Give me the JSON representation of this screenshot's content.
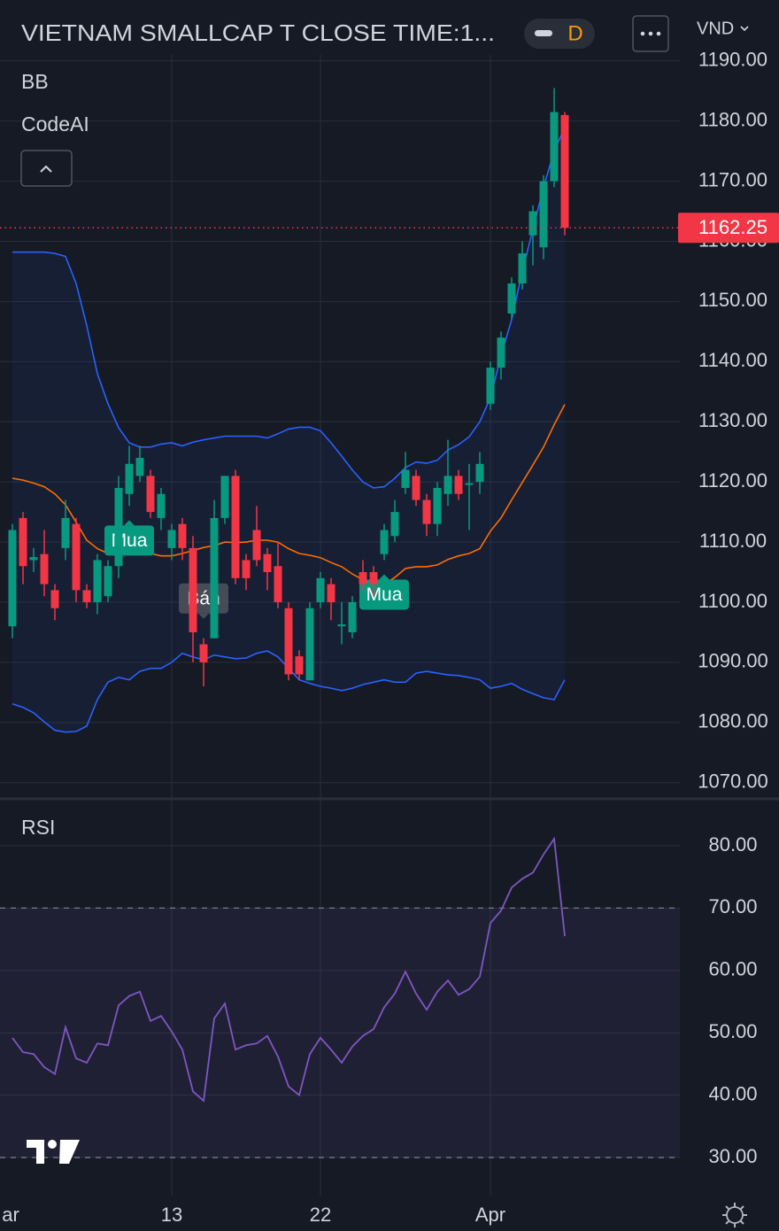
{
  "header": {
    "title": "VIETNAM SMALLCAP T CLOSE TIME:1...",
    "interval": "D",
    "currency": "VND"
  },
  "chart_data": [
    {
      "type": "candlestick",
      "indicators": [
        "BB",
        "CodeAI"
      ],
      "categories": [
        "ar",
        null,
        null,
        null,
        null,
        null,
        null,
        null,
        null,
        null,
        null,
        null,
        null,
        null,
        null,
        "13",
        null,
        null,
        null,
        null,
        null,
        null,
        null,
        null,
        null,
        null,
        null,
        null,
        null,
        "22",
        null,
        null,
        null,
        null,
        null,
        null,
        null,
        null,
        null,
        null,
        null,
        null,
        null,
        null,
        null,
        "Apr",
        null,
        null,
        null,
        null,
        null,
        null,
        null
      ],
      "open": [
        1096,
        1114,
        1107,
        1108,
        1102,
        1109,
        1113,
        1102,
        1100,
        1101,
        1106,
        1118,
        1121,
        1121,
        1114,
        1109,
        1113,
        1109,
        1093,
        1094,
        1114,
        1121,
        1107,
        1112,
        1108,
        1106,
        1099,
        1091,
        1087,
        1100,
        1103,
        1096,
        1095,
        1105,
        1105,
        1108,
        1111,
        1119,
        1121,
        1117,
        1113,
        1118,
        1121,
        1119.5,
        1120,
        1133,
        1139,
        1148,
        1153,
        1161,
        1159,
        1170,
        1181
      ],
      "high": [
        1113,
        1115,
        1109,
        1112,
        1103,
        1117,
        1114,
        1103,
        1108,
        1107,
        1121,
        1126,
        1126,
        1122,
        1119,
        1113,
        1114,
        1111,
        1094,
        1117,
        1121,
        1122,
        1108,
        1116,
        1109,
        1110,
        1100,
        1092,
        1100,
        1105,
        1104,
        1100,
        1101,
        1107,
        1106,
        1113,
        1117,
        1125,
        1122,
        1118,
        1120,
        1127,
        1122,
        1123,
        1125,
        1140,
        1145,
        1154,
        1160,
        1166,
        1171,
        1185.5,
        1181.5
      ],
      "low": [
        1094,
        1103,
        1105,
        1101,
        1097,
        1107,
        1100,
        1099,
        1098,
        1100,
        1104,
        1116,
        1120,
        1114,
        1112,
        1107,
        1107,
        1090,
        1086,
        1094,
        1113,
        1103,
        1102,
        1106,
        1102,
        1099,
        1087,
        1087,
        1087,
        1099,
        1097,
        1093,
        1094,
        1102,
        1101,
        1107,
        1110,
        1118,
        1116,
        1111,
        1111,
        1116,
        1117,
        1112,
        1118,
        1132,
        1137,
        1147,
        1152,
        1156,
        1157,
        1169,
        1161
      ],
      "close": [
        1112,
        1106,
        1107.5,
        1103,
        1099,
        1114,
        1102,
        1100,
        1107,
        1106,
        1119,
        1123,
        1124,
        1115,
        1118,
        1112,
        1109,
        1095,
        1090,
        1114,
        1121,
        1104,
        1104,
        1107,
        1105,
        1100,
        1088,
        1088,
        1099,
        1104,
        1100,
        1096.3,
        1100,
        1103,
        1103,
        1112,
        1115,
        1122,
        1117,
        1113,
        1119,
        1121,
        1118,
        1119.8,
        1123,
        1139,
        1144,
        1153,
        1158,
        1165,
        1170,
        1181.5,
        1162.25
      ],
      "up_color": "#089981",
      "down_color": "#f23645",
      "series": [
        {
          "color": "#2962ff",
          "values": [
            1158.2,
            1158.2,
            1158.2,
            1158.2,
            1158,
            1157.5,
            1153,
            1146,
            1138,
            1133,
            1129,
            1126.5,
            1125.8,
            1125.8,
            1126.3,
            1126.5,
            1126,
            1126.6,
            1127,
            1127.3,
            1127.6,
            1127.6,
            1127.6,
            1127.6,
            1127.3,
            1128,
            1128.8,
            1129.1,
            1129.1,
            1128.5,
            1126.5,
            1124.3,
            1122,
            1120,
            1119,
            1119.2,
            1120.6,
            1122.4,
            1123.3,
            1123.1,
            1123.6,
            1125.3,
            1126.2,
            1127.5,
            1130,
            1134,
            1141,
            1147,
            1155,
            1162,
            1169,
            1175,
            1179
          ]
        },
        {
          "color": "#ff6d00",
          "values": [
            1120.6,
            1120.3,
            1119.8,
            1119.2,
            1118,
            1116.2,
            1113.3,
            1110.3,
            1108.9,
            1108.1,
            1107.7,
            1108.3,
            1108.6,
            1108.1,
            1107.7,
            1107.7,
            1108.1,
            1108.6,
            1109.1,
            1109.4,
            1110,
            1109.9,
            1110,
            1110.3,
            1110.3,
            1110,
            1108.9,
            1108.1,
            1107.8,
            1107.4,
            1106.6,
            1105.9,
            1104.7,
            1103.7,
            1103,
            1103,
            1104.1,
            1105.6,
            1105.9,
            1105.9,
            1106.2,
            1107.1,
            1107.7,
            1108.1,
            1108.9,
            1111.8,
            1114,
            1117,
            1119.9,
            1122.8,
            1125.8,
            1129.5,
            1132.9
          ]
        },
        {
          "color": "#2962ff",
          "values": [
            1083.1,
            1082.5,
            1081.6,
            1080.1,
            1078.7,
            1078.4,
            1078.5,
            1079.4,
            1083.8,
            1086.7,
            1087.5,
            1087.1,
            1088.5,
            1089,
            1089,
            1090,
            1091.5,
            1090.9,
            1090.4,
            1091.2,
            1090.9,
            1090.6,
            1090.7,
            1091.5,
            1091.9,
            1090.9,
            1089,
            1087.1,
            1086.5,
            1086,
            1085.7,
            1085.3,
            1085.7,
            1086.3,
            1086.7,
            1087.1,
            1086.7,
            1086.7,
            1088.2,
            1088.5,
            1088.2,
            1087.9,
            1087.8,
            1087.5,
            1087.1,
            1085.7,
            1086,
            1086.5,
            1085.5,
            1084.8,
            1084.1,
            1083.8,
            1087.1
          ]
        }
      ],
      "signals": [
        null,
        null,
        null,
        null,
        null,
        null,
        null,
        null,
        null,
        null,
        null,
        "Mua",
        null,
        null,
        null,
        null,
        null,
        null,
        "Bán",
        null,
        null,
        null,
        null,
        null,
        null,
        null,
        null,
        null,
        null,
        null,
        null,
        null,
        null,
        null,
        null,
        "Mua",
        null,
        null,
        null,
        null,
        null,
        null,
        null,
        null,
        null,
        null,
        null,
        null,
        null,
        null,
        null,
        null,
        null
      ],
      "ylim": [
        1067.6,
        1191
      ],
      "yticks": [
        {
          "value": 1070,
          "label": "1070.00"
        },
        {
          "value": 1080,
          "label": "1080.00"
        },
        {
          "value": 1090,
          "label": "1090.00"
        },
        {
          "value": 1100,
          "label": "1100.00"
        },
        {
          "value": 1110,
          "label": "1110.00"
        },
        {
          "value": 1120,
          "label": "1120.00"
        },
        {
          "value": 1130,
          "label": "1130.00"
        },
        {
          "value": 1140,
          "label": "1140.00"
        },
        {
          "value": 1150,
          "label": "1150.00"
        },
        {
          "value": 1160,
          "label": "1160.00"
        },
        {
          "value": 1170,
          "label": "1170.00"
        },
        {
          "value": 1180,
          "label": "1180.00"
        },
        {
          "value": 1190,
          "label": "1190.00"
        }
      ],
      "grid": true
    },
    {
      "type": "line",
      "title": "RSI",
      "color": "#7e57c2",
      "values": [
        49.2,
        46.9,
        46.6,
        44.5,
        43.4,
        50.9,
        45.9,
        45.2,
        48.3,
        48,
        54.4,
        55.9,
        56.6,
        51.9,
        52.7,
        50.2,
        47.3,
        40.6,
        39.1,
        52.3,
        54.7,
        47.3,
        48,
        48.3,
        49.5,
        46.2,
        41.4,
        40,
        46.6,
        49.2,
        47.3,
        45.2,
        47.8,
        49.5,
        50.6,
        54.1,
        56.3,
        59.8,
        56.3,
        53.7,
        56.6,
        58.4,
        56.1,
        57,
        59,
        67.6,
        69.6,
        73.3,
        74.7,
        75.7,
        78.6,
        81.1,
        65.5
      ],
      "band": [
        30,
        70
      ],
      "ylim": [
        23.9,
        87.1
      ],
      "yticks": [
        {
          "value": 30,
          "label": "30.00"
        },
        {
          "value": 40,
          "label": "40.00"
        },
        {
          "value": 50,
          "label": "50.00"
        },
        {
          "value": 60,
          "label": "60.00"
        },
        {
          "value": 70,
          "label": "70.00"
        },
        {
          "value": 80,
          "label": "80.00"
        }
      ],
      "grid": true
    }
  ]
}
